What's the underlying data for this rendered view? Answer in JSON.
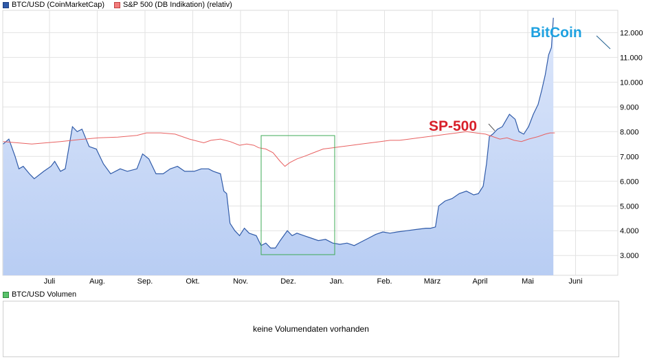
{
  "legends": {
    "btc": {
      "label": "BTC/USD (CoinMarketCap)",
      "color": "#2f5aa8"
    },
    "sp": {
      "label": "S&P 500 (DB Indikation) (relativ)",
      "color": "#e05050"
    },
    "volume": {
      "label": "BTC/USD Volumen",
      "color": "#39a845"
    }
  },
  "annotations": {
    "bitcoin": {
      "text": "BitCoin",
      "color": "#1ea1e0"
    },
    "sp500": {
      "text": "SP-500",
      "color": "#d8202a"
    }
  },
  "volume_panel": {
    "text": "keine Volumendaten vorhanden"
  },
  "chart_data": {
    "type": "line",
    "x_ticks": [
      "Juli",
      "Aug.",
      "Sep.",
      "Okt.",
      "Nov.",
      "Dez.",
      "Jan.",
      "Feb.",
      "März",
      "April",
      "Mai",
      "Juni"
    ],
    "y_ticks": [
      "3.000",
      "4.000",
      "5.000",
      "6.000",
      "7.000",
      "8.000",
      "9.000",
      "10.000",
      "11.000",
      "12.000"
    ],
    "ylim": [
      2200,
      12900
    ],
    "grid": true,
    "series": [
      {
        "name": "BTC/USD (CoinMarketCap)",
        "color": "#2f5aa8",
        "fill": true,
        "points": [
          [
            0,
            7500
          ],
          [
            0.12,
            7700
          ],
          [
            0.25,
            7000
          ],
          [
            0.33,
            6500
          ],
          [
            0.42,
            6600
          ],
          [
            0.55,
            6300
          ],
          [
            0.65,
            6100
          ],
          [
            0.85,
            6400
          ],
          [
            1.0,
            6600
          ],
          [
            1.08,
            6800
          ],
          [
            1.2,
            6400
          ],
          [
            1.3,
            6500
          ],
          [
            1.45,
            8200
          ],
          [
            1.55,
            8000
          ],
          [
            1.65,
            8100
          ],
          [
            1.8,
            7400
          ],
          [
            1.95,
            7300
          ],
          [
            2.1,
            6700
          ],
          [
            2.25,
            6300
          ],
          [
            2.45,
            6500
          ],
          [
            2.6,
            6400
          ],
          [
            2.8,
            6500
          ],
          [
            2.92,
            7100
          ],
          [
            3.05,
            6900
          ],
          [
            3.2,
            6300
          ],
          [
            3.35,
            6300
          ],
          [
            3.5,
            6500
          ],
          [
            3.65,
            6600
          ],
          [
            3.8,
            6400
          ],
          [
            4.0,
            6400
          ],
          [
            4.15,
            6500
          ],
          [
            4.3,
            6500
          ],
          [
            4.4,
            6400
          ],
          [
            4.55,
            6300
          ],
          [
            4.62,
            5600
          ],
          [
            4.68,
            5500
          ],
          [
            4.75,
            4300
          ],
          [
            4.85,
            4000
          ],
          [
            4.95,
            3800
          ],
          [
            5.05,
            4100
          ],
          [
            5.15,
            3900
          ],
          [
            5.3,
            3800
          ],
          [
            5.4,
            3400
          ],
          [
            5.5,
            3500
          ],
          [
            5.6,
            3300
          ],
          [
            5.7,
            3300
          ],
          [
            5.8,
            3600
          ],
          [
            5.95,
            4000
          ],
          [
            6.05,
            3800
          ],
          [
            6.15,
            3900
          ],
          [
            6.3,
            3800
          ],
          [
            6.45,
            3700
          ],
          [
            6.6,
            3600
          ],
          [
            6.75,
            3650
          ],
          [
            6.9,
            3500
          ],
          [
            7.05,
            3450
          ],
          [
            7.2,
            3500
          ],
          [
            7.35,
            3400
          ],
          [
            7.5,
            3550
          ],
          [
            7.65,
            3700
          ],
          [
            7.8,
            3850
          ],
          [
            7.95,
            3950
          ],
          [
            8.1,
            3900
          ],
          [
            8.25,
            3950
          ],
          [
            8.45,
            4000
          ],
          [
            8.65,
            4050
          ],
          [
            8.85,
            4100
          ],
          [
            8.95,
            4100
          ],
          [
            9.05,
            4150
          ],
          [
            9.12,
            5000
          ],
          [
            9.25,
            5200
          ],
          [
            9.4,
            5300
          ],
          [
            9.55,
            5500
          ],
          [
            9.7,
            5600
          ],
          [
            9.85,
            5450
          ],
          [
            9.95,
            5500
          ],
          [
            10.05,
            5800
          ],
          [
            10.12,
            6700
          ],
          [
            10.18,
            7800
          ],
          [
            10.25,
            7900
          ],
          [
            10.35,
            8100
          ],
          [
            10.45,
            8200
          ],
          [
            10.6,
            8700
          ],
          [
            10.72,
            8500
          ],
          [
            10.8,
            8000
          ],
          [
            10.9,
            7900
          ],
          [
            11.0,
            8200
          ],
          [
            11.1,
            8700
          ],
          [
            11.2,
            9100
          ],
          [
            11.28,
            9700
          ],
          [
            11.35,
            10300
          ],
          [
            11.42,
            11100
          ],
          [
            11.48,
            11400
          ],
          [
            11.52,
            12600
          ]
        ]
      },
      {
        "name": "S&P 500 (DB Indikation) (relativ)",
        "color": "#e05050",
        "fill": false,
        "points": [
          [
            0,
            7600
          ],
          [
            0.3,
            7550
          ],
          [
            0.6,
            7500
          ],
          [
            0.9,
            7550
          ],
          [
            1.2,
            7600
          ],
          [
            1.6,
            7680
          ],
          [
            2.0,
            7750
          ],
          [
            2.4,
            7780
          ],
          [
            2.8,
            7850
          ],
          [
            3.0,
            7950
          ],
          [
            3.3,
            7950
          ],
          [
            3.6,
            7900
          ],
          [
            3.9,
            7700
          ],
          [
            4.2,
            7550
          ],
          [
            4.35,
            7650
          ],
          [
            4.55,
            7700
          ],
          [
            4.75,
            7600
          ],
          [
            4.95,
            7450
          ],
          [
            5.1,
            7500
          ],
          [
            5.25,
            7450
          ],
          [
            5.35,
            7350
          ],
          [
            5.5,
            7300
          ],
          [
            5.65,
            7150
          ],
          [
            5.8,
            6800
          ],
          [
            5.9,
            6600
          ],
          [
            6.0,
            6750
          ],
          [
            6.15,
            6900
          ],
          [
            6.3,
            7000
          ],
          [
            6.5,
            7150
          ],
          [
            6.7,
            7300
          ],
          [
            6.9,
            7350
          ],
          [
            7.1,
            7400
          ],
          [
            7.3,
            7450
          ],
          [
            7.5,
            7500
          ],
          [
            7.7,
            7550
          ],
          [
            7.9,
            7600
          ],
          [
            8.1,
            7650
          ],
          [
            8.3,
            7650
          ],
          [
            8.5,
            7700
          ],
          [
            8.7,
            7750
          ],
          [
            8.9,
            7800
          ],
          [
            9.1,
            7850
          ],
          [
            9.3,
            7900
          ],
          [
            9.5,
            7950
          ],
          [
            9.7,
            8000
          ],
          [
            9.9,
            7950
          ],
          [
            10.1,
            7900
          ],
          [
            10.25,
            7800
          ],
          [
            10.4,
            7700
          ],
          [
            10.55,
            7750
          ],
          [
            10.7,
            7650
          ],
          [
            10.85,
            7600
          ],
          [
            11.0,
            7700
          ],
          [
            11.2,
            7800
          ],
          [
            11.35,
            7900
          ],
          [
            11.45,
            7950
          ],
          [
            11.55,
            7950
          ]
        ]
      }
    ]
  }
}
